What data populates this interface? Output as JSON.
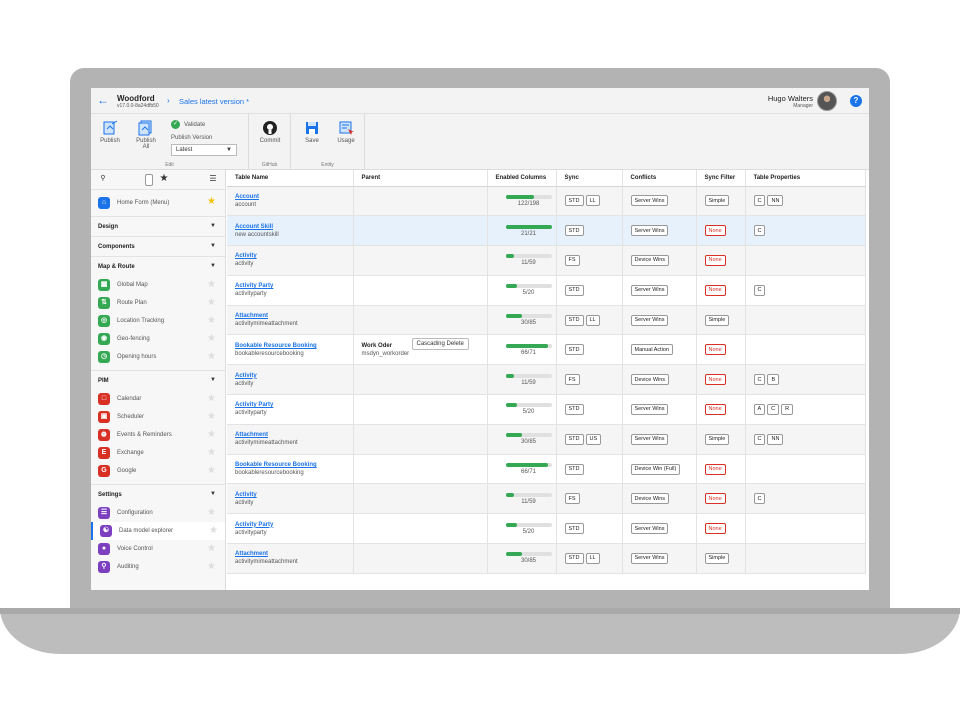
{
  "header": {
    "app_name": "Woodford",
    "app_version": "v17.0.0-8a24dfb50",
    "breadcrumb": "Sales latest version *",
    "user_name": "Hugo Walters",
    "user_role": "Manager",
    "help": "?"
  },
  "ribbon": {
    "edit": {
      "label": "Edit",
      "publish": "Publish",
      "publish_all_1": "Publish",
      "publish_all_2": "All",
      "validate": "Validate",
      "publish_version_label": "Publish Version",
      "publish_version_value": "Latest"
    },
    "github": {
      "label": "GitHub",
      "commit": "Commit"
    },
    "entity": {
      "label": "Entity",
      "save": "Save",
      "usage": "Usage"
    }
  },
  "sidebar": {
    "home": "Home Form (Menu)",
    "design": "Design",
    "components": "Components",
    "map_route": {
      "label": "Map & Route",
      "items": [
        "Global Map",
        "Route Plan",
        "Location Tracking",
        "Geo-fencing",
        "Opening hours"
      ]
    },
    "pim": {
      "label": "PIM",
      "items": [
        "Calendar",
        "Scheduler",
        "Events & Reminders",
        "Exchange",
        "Google"
      ]
    },
    "settings": {
      "label": "Settings",
      "items": [
        "Configuration",
        "Data model explorer",
        "Voice Control",
        "Auditing"
      ]
    }
  },
  "table": {
    "columns": [
      "Table Name",
      "Parent",
      "Enabled Columns",
      "Sync",
      "Conflicts",
      "Sync Filter",
      "Table Properties"
    ],
    "rows": [
      {
        "name": "Account",
        "sub": "account",
        "parent_title": "",
        "parent_sub": "",
        "parent_btn": "",
        "enabled": "122/198",
        "fill": 0.62,
        "sync": [
          "STD",
          "LL"
        ],
        "conflicts": "Server Wins",
        "filter": "Simple",
        "filter_none": false,
        "props": [
          "C",
          "NN"
        ]
      },
      {
        "name": "Account Skill",
        "sub": "new accountskill",
        "parent_title": "",
        "parent_sub": "",
        "parent_btn": "",
        "enabled": "21/21",
        "fill": 1.0,
        "sync": [
          "STD"
        ],
        "conflicts": "Server Wins",
        "filter": "None",
        "filter_none": true,
        "props": [
          "C"
        ]
      },
      {
        "name": "Activity",
        "sub": "activity",
        "parent_title": "",
        "parent_sub": "",
        "parent_btn": "",
        "enabled": "11/59",
        "fill": 0.19,
        "sync": [
          "FS"
        ],
        "conflicts": "Device Wins",
        "filter": "None",
        "filter_none": true,
        "props": []
      },
      {
        "name": "Activity Party",
        "sub": "activityparty",
        "parent_title": "",
        "parent_sub": "",
        "parent_btn": "",
        "enabled": "5/20",
        "fill": 0.25,
        "sync": [
          "STD"
        ],
        "conflicts": "Server Wins",
        "filter": "None",
        "filter_none": true,
        "props": [
          "C"
        ]
      },
      {
        "name": "Attachment",
        "sub": "activitymimeattachment",
        "parent_title": "",
        "parent_sub": "",
        "parent_btn": "",
        "enabled": "30/85",
        "fill": 0.35,
        "sync": [
          "STD",
          "LL"
        ],
        "conflicts": "Server Wins",
        "filter": "Simple",
        "filter_none": false,
        "props": []
      },
      {
        "name": "Bookable Resource Booking",
        "sub": "bookableresourcebooking",
        "parent_title": "Work Oder",
        "parent_sub": "msdyn_workorder",
        "parent_btn": "Cascading Delete",
        "enabled": "66/71",
        "fill": 0.93,
        "sync": [
          "STD"
        ],
        "conflicts": "Manual Action",
        "filter": "None",
        "filter_none": true,
        "props": []
      },
      {
        "name": "Activity",
        "sub": "activity",
        "parent_title": "",
        "parent_sub": "",
        "parent_btn": "",
        "enabled": "11/59",
        "fill": 0.19,
        "sync": [
          "FS"
        ],
        "conflicts": "Device Wins",
        "filter": "None",
        "filter_none": true,
        "props": [
          "C",
          "B"
        ]
      },
      {
        "name": "Activity Party",
        "sub": "activityparty",
        "parent_title": "",
        "parent_sub": "",
        "parent_btn": "",
        "enabled": "5/20",
        "fill": 0.25,
        "sync": [
          "STD"
        ],
        "conflicts": "Server Wins",
        "filter": "None",
        "filter_none": true,
        "props": [
          "A",
          "C",
          "R"
        ]
      },
      {
        "name": "Attachment",
        "sub": "activitymimeattachment",
        "parent_title": "",
        "parent_sub": "",
        "parent_btn": "",
        "enabled": "30/85",
        "fill": 0.35,
        "sync": [
          "STD",
          "US"
        ],
        "conflicts": "Server Wins",
        "filter": "Simple",
        "filter_none": false,
        "props": [
          "C",
          "NN"
        ]
      },
      {
        "name": "Bookable Resource Booking",
        "sub": "bookableresourcebooking",
        "parent_title": "",
        "parent_sub": "",
        "parent_btn": "",
        "enabled": "66/71",
        "fill": 0.93,
        "sync": [
          "STD"
        ],
        "conflicts": "Device Win (Full)",
        "filter": "None",
        "filter_none": true,
        "props": []
      },
      {
        "name": "Activity",
        "sub": "activity",
        "parent_title": "",
        "parent_sub": "",
        "parent_btn": "",
        "enabled": "11/59",
        "fill": 0.19,
        "sync": [
          "FS"
        ],
        "conflicts": "Device Wins",
        "filter": "None",
        "filter_none": true,
        "props": [
          "C"
        ]
      },
      {
        "name": "Activity Party",
        "sub": "activityparty",
        "parent_title": "",
        "parent_sub": "",
        "parent_btn": "",
        "enabled": "5/20",
        "fill": 0.25,
        "sync": [
          "STD"
        ],
        "conflicts": "Server Wins",
        "filter": "None",
        "filter_none": true,
        "props": []
      },
      {
        "name": "Attachment",
        "sub": "activitymimeattachment",
        "parent_title": "",
        "parent_sub": "",
        "parent_btn": "",
        "enabled": "30/85",
        "fill": 0.35,
        "sync": [
          "STD",
          "LL"
        ],
        "conflicts": "Server Wins",
        "filter": "Simple",
        "filter_none": false,
        "props": []
      }
    ]
  }
}
